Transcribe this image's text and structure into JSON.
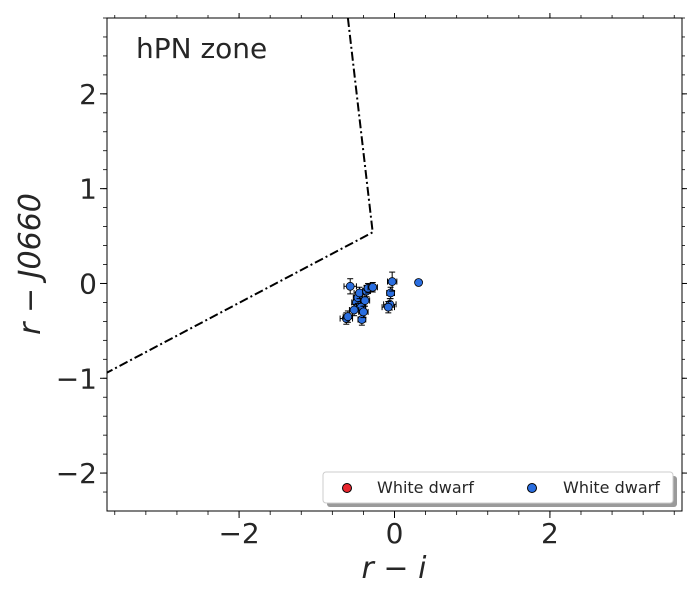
{
  "chart_data": {
    "type": "scatter",
    "annotation": "hPN zone",
    "xlabel": "r − i",
    "ylabel": "r − J0660",
    "xlim": [
      -3.7,
      3.7
    ],
    "ylim": [
      -2.4,
      2.8
    ],
    "xticks": [
      -2,
      0,
      2
    ],
    "yticks": [
      -2,
      -1,
      0,
      1,
      2
    ],
    "xtick_labels": [
      "−2",
      "0",
      "2"
    ],
    "ytick_labels": [
      "−2",
      "−1",
      "0",
      "1",
      "2"
    ],
    "grid": false,
    "legend_position": "bottom-right",
    "hpn_boundary": {
      "style": "dash-dot",
      "points": [
        [
          -0.6,
          2.8
        ],
        [
          -0.28,
          0.54
        ],
        [
          -3.7,
          -0.94
        ]
      ]
    },
    "series": [
      {
        "name": "White dwarf",
        "color": "#e8262e",
        "points": []
      },
      {
        "name": "White dwarf",
        "color": "#2a6ee0",
        "points": [
          {
            "x": -0.57,
            "y": -0.03,
            "xerr": 0.08,
            "yerr": 0.08
          },
          {
            "x": -0.62,
            "y": -0.37,
            "xerr": 0.08,
            "yerr": 0.06
          },
          {
            "x": -0.6,
            "y": -0.35,
            "xerr": 0.06,
            "yerr": 0.06
          },
          {
            "x": -0.49,
            "y": -0.2,
            "xerr": 0.06,
            "yerr": 0.06
          },
          {
            "x": -0.47,
            "y": -0.15,
            "xerr": 0.06,
            "yerr": 0.06
          },
          {
            "x": -0.45,
            "y": -0.1,
            "xerr": 0.07,
            "yerr": 0.06
          },
          {
            "x": -0.43,
            "y": -0.25,
            "xerr": 0.06,
            "yerr": 0.06
          },
          {
            "x": -0.42,
            "y": -0.38,
            "xerr": 0.05,
            "yerr": 0.06
          },
          {
            "x": -0.4,
            "y": -0.3,
            "xerr": 0.06,
            "yerr": 0.06
          },
          {
            "x": -0.38,
            "y": -0.18,
            "xerr": 0.06,
            "yerr": 0.06
          },
          {
            "x": -0.36,
            "y": -0.08,
            "xerr": 0.05,
            "yerr": 0.06
          },
          {
            "x": -0.34,
            "y": -0.05,
            "xerr": 0.05,
            "yerr": 0.05
          },
          {
            "x": -0.28,
            "y": -0.04,
            "xerr": 0.06,
            "yerr": 0.05
          },
          {
            "x": -0.52,
            "y": -0.28,
            "xerr": 0.06,
            "yerr": 0.06
          },
          {
            "x": -0.06,
            "y": -0.22,
            "xerr": 0.08,
            "yerr": 0.06
          },
          {
            "x": -0.08,
            "y": -0.25,
            "xerr": 0.08,
            "yerr": 0.06
          },
          {
            "x": -0.05,
            "y": -0.1,
            "xerr": 0.05,
            "yerr": 0.06
          },
          {
            "x": -0.03,
            "y": 0.02,
            "xerr": 0.06,
            "yerr": 0.1
          },
          {
            "x": 0.31,
            "y": 0.01,
            "xerr": 0.02,
            "yerr": 0.02
          }
        ]
      }
    ]
  }
}
